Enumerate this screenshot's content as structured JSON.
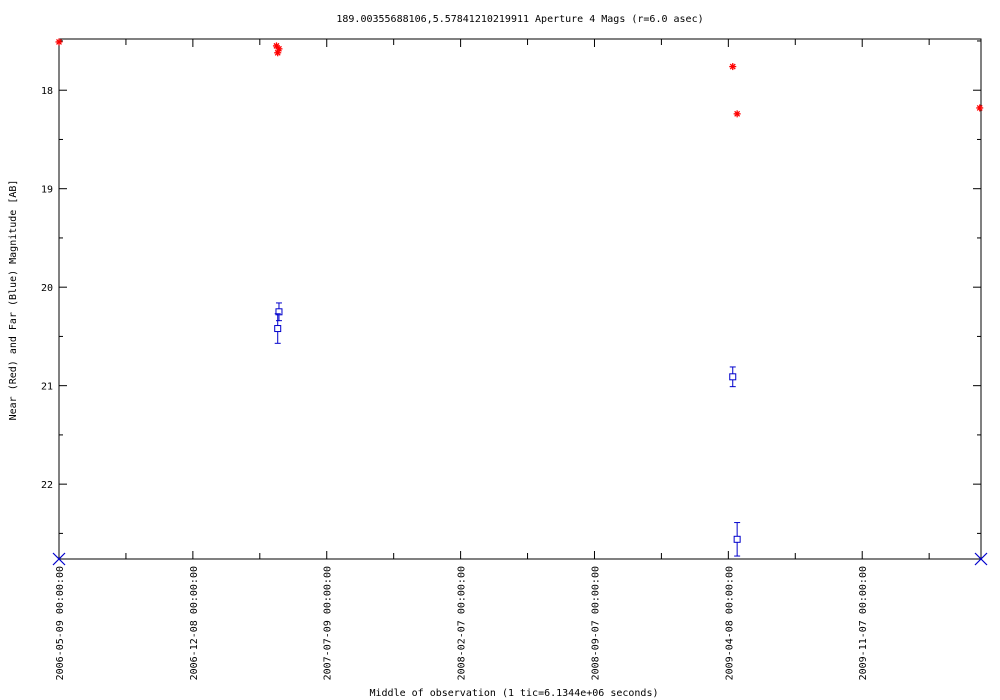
{
  "chart_data": {
    "type": "scatter",
    "title": "189.00355688106,5.57841210219911   Aperture 4 Mags (r=6.0 asec)",
    "xlabel": "Middle of observation (1 tic=6.1344e+06 seconds)",
    "ylabel": "Near (Red) and Far (Blue) Magnitude [AB]",
    "x_tick_labels": [
      "2006-05-09 00:00:00",
      "2006-12-08 00:00:00",
      "2007-07-09 00:00:00",
      "2008-02-07 00:00:00",
      "2008-09-07 00:00:00",
      "2009-04-08 00:00:00",
      "2009-11-07 00:00:00"
    ],
    "x_tick_dates": [
      "2006-05-09",
      "2006-12-08",
      "2007-07-09",
      "2008-02-07",
      "2008-09-07",
      "2009-04-08",
      "2009-11-07"
    ],
    "xlim": [
      "2006-05-09",
      "2010-05-15"
    ],
    "ylim": [
      22.76,
      17.48
    ],
    "y_inverted": true,
    "y_ticks": [
      18,
      19,
      20,
      21,
      22
    ],
    "grid": false,
    "series": [
      {
        "name": "Near (Red)",
        "color": "#ff0000",
        "marker": "asterisk",
        "points": [
          {
            "x": "2006-05-09",
            "y": 17.51
          },
          {
            "x": "2007-04-20",
            "y": 17.55
          },
          {
            "x": "2007-04-22",
            "y": 17.62
          },
          {
            "x": "2007-04-24",
            "y": 17.58
          },
          {
            "x": "2009-04-15",
            "y": 17.76
          },
          {
            "x": "2009-04-22",
            "y": 18.24
          },
          {
            "x": "2010-05-13",
            "y": 18.18
          }
        ]
      },
      {
        "name": "Far (Blue)",
        "color": "#0000cc",
        "marker": "square",
        "points": [
          {
            "x": "2007-04-22",
            "y": 20.42,
            "err": 0.15
          },
          {
            "x": "2007-04-24",
            "y": 20.25,
            "err": 0.09
          },
          {
            "x": "2009-04-15",
            "y": 20.91,
            "err": 0.1
          },
          {
            "x": "2009-04-22",
            "y": 22.56,
            "err": 0.17
          }
        ]
      }
    ],
    "axis_end_markers": {
      "color": "#0000cc",
      "marker": "cross",
      "x": [
        "2006-05-09",
        "2010-05-15"
      ]
    }
  }
}
